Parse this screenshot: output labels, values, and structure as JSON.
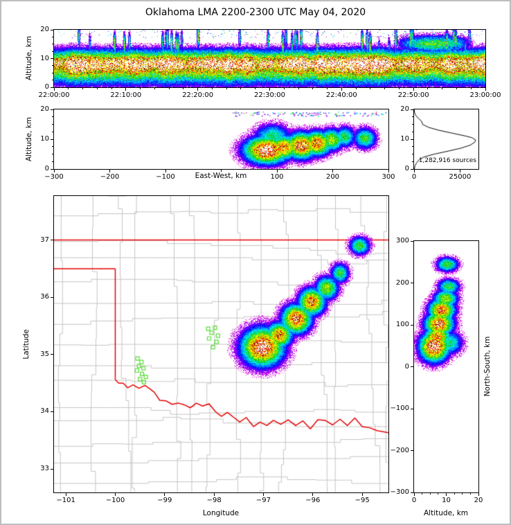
{
  "title": "Oklahoma LMA 2200-2300 UTC May 04, 2020",
  "stats": {
    "sources_label": "1,282,916 sources"
  },
  "axis_labels": {
    "altitude": "Altitude, km",
    "east_west": "East-West, km",
    "longitude": "Longitude",
    "latitude": "Latitude",
    "north_south": "North-South, km"
  },
  "colors": {
    "state_border": "#e60000",
    "county": "#c4c4c4",
    "station_marker": "#55dd33",
    "curve": "#000000",
    "frame": "#bdbdbd",
    "background": "#ffffff"
  },
  "chart_data": {
    "type": "heatmap",
    "description_title": "Oklahoma LMA 2200-2300 UTC May 04, 2020",
    "panels": [
      {
        "name": "time_height",
        "type": "heatmap",
        "ylabel": "Altitude, km",
        "ylim": [
          0,
          20
        ],
        "yticks": [
          0,
          10,
          20
        ],
        "xlim_seconds": [
          0,
          3600
        ],
        "xticks": [
          {
            "t": 0,
            "label": "22:00:00"
          },
          {
            "t": 600,
            "label": "22:10:00"
          },
          {
            "t": 1200,
            "label": "22:20:00"
          },
          {
            "t": 1800,
            "label": "22:30:00"
          },
          {
            "t": 2400,
            "label": "22:40:00"
          },
          {
            "t": 3000,
            "label": "22:50:00"
          },
          {
            "t": 3600,
            "label": "23:00:00"
          }
        ],
        "profile": {
          "peak_alt_km": 8.2,
          "sigma_below_km": 4.1,
          "sigma_above_km": 3.0,
          "core_band_km": [
            6.6,
            10.4
          ],
          "elevated_layer": {
            "start_fraction": 0.78,
            "alt_km": 15.2
          }
        }
      },
      {
        "name": "ew_height",
        "type": "heatmap",
        "xlabel": "East-West, km",
        "ylabel": "Altitude, km",
        "xlim": [
          -300,
          300
        ],
        "xticks": [
          -300,
          -200,
          -100,
          0,
          100,
          200,
          300
        ],
        "ylim": [
          0,
          20
        ],
        "yticks": [
          0,
          10,
          20
        ],
        "top_scatter": {
          "n": 130,
          "ew_range": [
            20,
            295
          ],
          "alt_range": [
            17.8,
            19.3
          ]
        }
      },
      {
        "name": "alt_histogram",
        "type": "line",
        "xlim": [
          0,
          35000
        ],
        "xticks": [
          0,
          25000
        ],
        "ylim": [
          0,
          20
        ],
        "yticks": [
          0,
          10,
          20
        ],
        "annotation": "1,282,916 sources",
        "alts": [
          0,
          1,
          2,
          3,
          4,
          5,
          6,
          7,
          8,
          9,
          9.7,
          10.5,
          11,
          12,
          13,
          14,
          15,
          16,
          17,
          18,
          19,
          20
        ],
        "counts": [
          150,
          500,
          1300,
          2600,
          5200,
          11000,
          18500,
          25500,
          30500,
          33000,
          33500,
          31500,
          28500,
          21000,
          13500,
          7800,
          4600,
          4100,
          2400,
          900,
          250,
          60
        ]
      },
      {
        "name": "plan_view",
        "type": "heatmap",
        "xlabel": "Longitude",
        "ylabel": "Latitude",
        "xlim": [
          -101.24,
          -94.47
        ],
        "ylim": [
          32.59,
          37.77
        ],
        "xticks": [
          -101,
          -100,
          -99,
          -98,
          -97,
          -96,
          -95
        ],
        "yticks": [
          33,
          34,
          35,
          36,
          37
        ]
      },
      {
        "name": "ns_height",
        "type": "heatmap",
        "xlabel": "Altitude, km",
        "ylabel": "North-South, km",
        "xlim": [
          0,
          20
        ],
        "xticks": [
          0,
          10,
          20
        ],
        "ylim": [
          -300,
          300
        ],
        "yticks": [
          300,
          200,
          100,
          0,
          -100,
          -200,
          -300
        ]
      }
    ],
    "storm_cells": [
      {
        "lon": -97.02,
        "lat": 35.13,
        "ew": 82,
        "ns": 48,
        "alt": 6.3,
        "s_lon": 0.27,
        "s_lat": 0.21,
        "s_ew": 26,
        "s_ns": 23,
        "s_alt": 2.9,
        "peak": 1.0
      },
      {
        "lon": -96.9,
        "lat": 35.22,
        "ew": 92,
        "ns": 57,
        "alt": 11.0,
        "s_lon": 0.2,
        "s_lat": 0.16,
        "s_ew": 21,
        "s_ns": 18,
        "s_alt": 2.6,
        "peak": 0.45
      },
      {
        "lon": -96.68,
        "lat": 35.34,
        "ew": 112,
        "ns": 71,
        "alt": 7.2,
        "s_lon": 0.17,
        "s_lat": 0.14,
        "s_ew": 17,
        "s_ns": 16,
        "s_alt": 2.6,
        "peak": 0.82
      },
      {
        "lon": -96.33,
        "lat": 35.62,
        "ew": 144,
        "ns": 102,
        "alt": 7.8,
        "s_lon": 0.19,
        "s_lat": 0.16,
        "s_ew": 19,
        "s_ns": 18,
        "s_alt": 2.8,
        "peak": 0.92
      },
      {
        "lon": -96.02,
        "lat": 35.92,
        "ew": 172,
        "ns": 135,
        "alt": 8.6,
        "s_lon": 0.17,
        "s_lat": 0.15,
        "s_ew": 17,
        "s_ns": 17,
        "s_alt": 2.6,
        "peak": 0.85
      },
      {
        "lon": -95.72,
        "lat": 36.16,
        "ew": 198,
        "ns": 162,
        "alt": 9.8,
        "s_lon": 0.15,
        "s_lat": 0.13,
        "s_ew": 15,
        "s_ns": 14,
        "s_alt": 2.4,
        "peak": 0.62
      },
      {
        "lon": -95.45,
        "lat": 36.42,
        "ew": 222,
        "ns": 191,
        "alt": 10.8,
        "s_lon": 0.12,
        "s_lat": 0.11,
        "s_ew": 12,
        "s_ns": 12,
        "s_alt": 2.2,
        "peak": 0.5
      },
      {
        "lon": -95.05,
        "lat": 36.9,
        "ew": 258,
        "ns": 244,
        "alt": 10.3,
        "s_lon": 0.13,
        "s_lat": 0.1,
        "s_ew": 13,
        "s_ns": 11,
        "s_alt": 2.2,
        "peak": 0.52
      }
    ],
    "stations_deg": [
      [
        -99.55,
        34.93
      ],
      [
        -99.47,
        34.87
      ],
      [
        -99.52,
        34.8
      ],
      [
        -99.43,
        34.76
      ],
      [
        -99.56,
        34.72
      ],
      [
        -99.46,
        34.66
      ],
      [
        -99.38,
        34.61
      ],
      [
        -99.5,
        34.57
      ],
      [
        -99.42,
        34.52
      ],
      [
        -98.12,
        35.45
      ],
      [
        -97.98,
        35.47
      ],
      [
        -98.05,
        35.38
      ],
      [
        -97.92,
        35.33
      ],
      [
        -98.1,
        35.28
      ],
      [
        -97.95,
        35.22
      ],
      [
        -98.02,
        35.13
      ]
    ],
    "oklahoma_border_segments": [
      [
        [
          -101.3,
          37.0
        ],
        [
          -94.4,
          37.0
        ]
      ],
      [
        [
          -101.3,
          36.5
        ],
        [
          -100.0,
          36.5
        ]
      ],
      [
        [
          -100.0,
          36.5
        ],
        [
          -100.0,
          34.56
        ]
      ],
      [
        [
          -100.0,
          34.56
        ],
        [
          -99.93,
          34.5
        ],
        [
          -99.84,
          34.5
        ],
        [
          -99.75,
          34.42
        ],
        [
          -99.64,
          34.47
        ],
        [
          -99.52,
          34.41
        ],
        [
          -99.4,
          34.46
        ],
        [
          -99.3,
          34.4
        ],
        [
          -99.21,
          34.34
        ],
        [
          -99.1,
          34.2
        ],
        [
          -98.97,
          34.19
        ],
        [
          -98.85,
          34.13
        ],
        [
          -98.72,
          34.15
        ],
        [
          -98.6,
          34.12
        ],
        [
          -98.48,
          34.07
        ],
        [
          -98.36,
          34.15
        ],
        [
          -98.23,
          34.1
        ],
        [
          -98.1,
          34.14
        ],
        [
          -97.97,
          34.0
        ],
        [
          -97.85,
          33.92
        ],
        [
          -97.73,
          33.99
        ],
        [
          -97.6,
          33.9
        ],
        [
          -97.48,
          33.82
        ],
        [
          -97.35,
          33.9
        ],
        [
          -97.2,
          33.74
        ],
        [
          -97.07,
          33.82
        ],
        [
          -96.93,
          33.76
        ],
        [
          -96.8,
          33.85
        ],
        [
          -96.65,
          33.78
        ],
        [
          -96.5,
          33.86
        ],
        [
          -96.35,
          33.76
        ],
        [
          -96.2,
          33.84
        ],
        [
          -96.05,
          33.7
        ],
        [
          -95.9,
          33.86
        ],
        [
          -95.75,
          33.85
        ],
        [
          -95.6,
          33.77
        ],
        [
          -95.45,
          33.87
        ],
        [
          -95.3,
          33.76
        ],
        [
          -95.15,
          33.89
        ],
        [
          -95.0,
          33.74
        ],
        [
          -94.85,
          33.72
        ],
        [
          -94.7,
          33.67
        ],
        [
          -94.45,
          33.63
        ]
      ]
    ],
    "colormap": [
      [
        0.0,
        "#e040e0"
      ],
      [
        0.06,
        "#b000f0"
      ],
      [
        0.12,
        "#6000ff"
      ],
      [
        0.18,
        "#0010ff"
      ],
      [
        0.24,
        "#0070ff"
      ],
      [
        0.3,
        "#00c0ff"
      ],
      [
        0.36,
        "#00f0d0"
      ],
      [
        0.42,
        "#00e060"
      ],
      [
        0.48,
        "#20c000"
      ],
      [
        0.54,
        "#70e000"
      ],
      [
        0.6,
        "#c0f000"
      ],
      [
        0.66,
        "#ffff00"
      ],
      [
        0.72,
        "#ffc000"
      ],
      [
        0.77,
        "#ff8000"
      ],
      [
        0.82,
        "#ff3000"
      ],
      [
        0.86,
        "#e00000"
      ],
      [
        0.895,
        "#990000"
      ],
      [
        0.925,
        "#550000"
      ],
      [
        0.945,
        "#808080"
      ],
      [
        0.965,
        "#c0c0c0"
      ],
      [
        0.982,
        "#ffffff"
      ]
    ]
  }
}
